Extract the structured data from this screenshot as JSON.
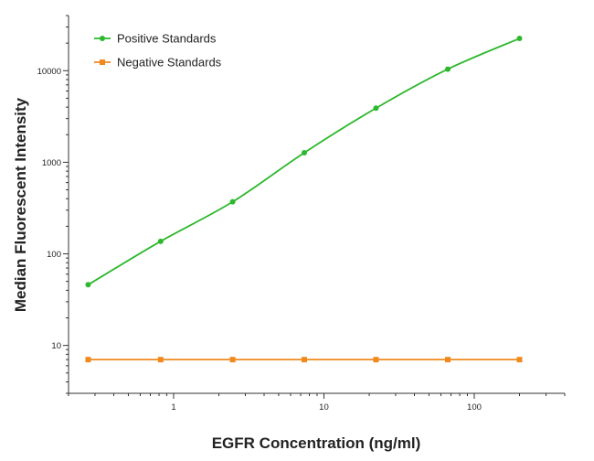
{
  "chart_data": {
    "type": "line",
    "title": "",
    "xlabel": "EGFR Concentration (ng/ml)",
    "ylabel": "Median Fluorescent Intensity",
    "x_scale": "log",
    "y_scale": "log",
    "xlim": [
      0.2,
      400
    ],
    "ylim": [
      3,
      40000
    ],
    "x_ticks": [
      1,
      10,
      100
    ],
    "x_tick_labels": [
      "1",
      "10",
      "100"
    ],
    "y_ticks": [
      10,
      100,
      1000,
      10000
    ],
    "y_tick_labels": [
      "10",
      "100",
      "1000",
      "10000"
    ],
    "grid": false,
    "legend_position": "top-left",
    "series": [
      {
        "name": "Positive Standards",
        "color": "#2db82d",
        "marker": "circle",
        "x": [
          0.27,
          0.82,
          2.47,
          7.4,
          22.2,
          66.7,
          200
        ],
        "y": [
          46,
          137,
          370,
          1270,
          3900,
          10400,
          22500
        ]
      },
      {
        "name": "Negative Standards",
        "color": "#f08a1e",
        "marker": "square",
        "x": [
          0.27,
          0.82,
          2.47,
          7.4,
          22.2,
          66.7,
          200
        ],
        "y": [
          7,
          7,
          7,
          7,
          7,
          7,
          7
        ]
      }
    ]
  }
}
